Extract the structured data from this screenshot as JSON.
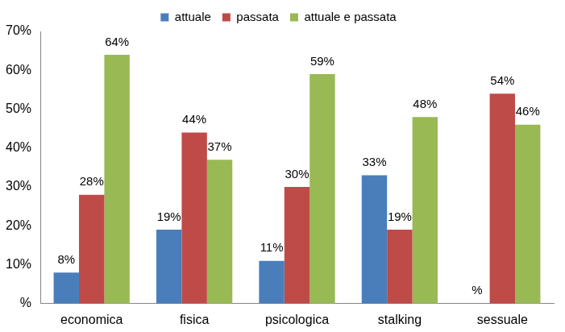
{
  "chart_data": {
    "type": "bar",
    "categories": [
      "economica",
      "fisica",
      "psicologica",
      "stalking",
      "sessuale"
    ],
    "series": [
      {
        "name": "attuale",
        "color": "#4a7ebb",
        "values": [
          8,
          19,
          11,
          33,
          0
        ],
        "value_labels": [
          "8%",
          "19%",
          "11%",
          "33%",
          "%"
        ]
      },
      {
        "name": "passata",
        "color": "#be4b48",
        "values": [
          28,
          44,
          30,
          19,
          54
        ],
        "value_labels": [
          "28%",
          "44%",
          "30%",
          "19%",
          "54%"
        ]
      },
      {
        "name": "attuale e passata",
        "color": "#98b954",
        "values": [
          64,
          37,
          59,
          48,
          46
        ],
        "value_labels": [
          "64%",
          "37%",
          "59%",
          "48%",
          "46%"
        ]
      }
    ],
    "ylim": [
      0,
      70
    ],
    "yticks": [
      {
        "value": 0,
        "label": "%"
      },
      {
        "value": 10,
        "label": "10%"
      },
      {
        "value": 20,
        "label": "20%"
      },
      {
        "value": 30,
        "label": "30%"
      },
      {
        "value": 40,
        "label": "40%"
      },
      {
        "value": 50,
        "label": "50%"
      },
      {
        "value": 60,
        "label": "60%"
      },
      {
        "value": 70,
        "label": "70%"
      }
    ],
    "grid": false,
    "legend": "top",
    "data_labels": true
  }
}
